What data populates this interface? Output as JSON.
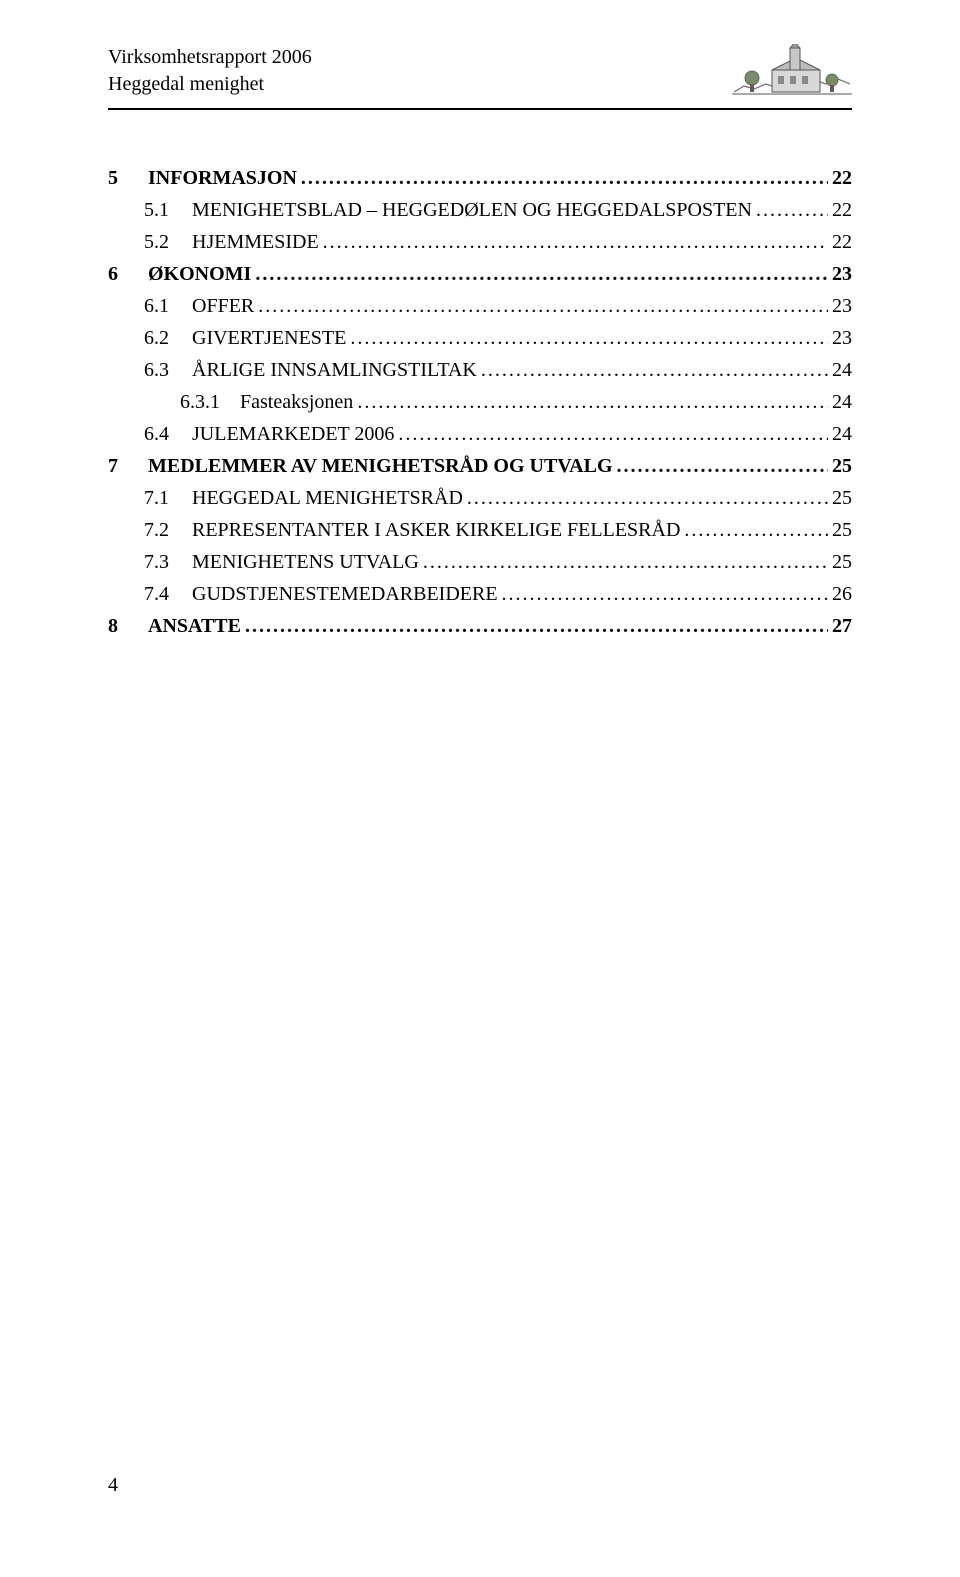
{
  "header": {
    "line1": "Virksomhetsrapport 2006",
    "line2": "Heggedal menighet"
  },
  "toc": [
    {
      "level": 0,
      "num": "5",
      "title": "INFORMASJON",
      "page": "22"
    },
    {
      "level": 1,
      "num": "5.1",
      "title": "MENIGHETSBLAD – HEGGEDØLEN OG HEGGEDALSPOSTEN",
      "page": "22"
    },
    {
      "level": 1,
      "num": "5.2",
      "title": "HJEMMESIDE",
      "page": "22"
    },
    {
      "level": 0,
      "num": "6",
      "title": "ØKONOMI",
      "page": "23"
    },
    {
      "level": 1,
      "num": "6.1",
      "title": "OFFER",
      "page": "23"
    },
    {
      "level": 1,
      "num": "6.2",
      "title": "GIVERTJENESTE",
      "page": "23"
    },
    {
      "level": 1,
      "num": "6.3",
      "title": "ÅRLIGE INNSAMLINGSTILTAK",
      "page": "24"
    },
    {
      "level": 2,
      "num": "6.3.1",
      "title": "Fasteaksjonen",
      "page": "24"
    },
    {
      "level": 1,
      "num": "6.4",
      "title": "JULEMARKEDET 2006",
      "page": "24"
    },
    {
      "level": 0,
      "num": "7",
      "title": "MEDLEMMER AV MENIGHETSRÅD OG UTVALG",
      "page": "25"
    },
    {
      "level": 1,
      "num": "7.1",
      "title": "HEGGEDAL MENIGHETSRÅD",
      "page": "25"
    },
    {
      "level": 1,
      "num": "7.2",
      "title": "REPRESENTANTER I ASKER KIRKELIGE FELLESRÅD",
      "page": "25"
    },
    {
      "level": 1,
      "num": "7.3",
      "title": "MENIGHETENS UTVALG",
      "page": "25"
    },
    {
      "level": 1,
      "num": "7.4",
      "title": "GUDSTJENESTEMEDARBEIDERE",
      "page": "26"
    },
    {
      "level": 0,
      "num": "8",
      "title": "ANSATTE",
      "page": "27"
    }
  ],
  "leader": "....................................................................................................................................................................................................",
  "page_number": "4",
  "colors": {
    "text": "#000000",
    "background": "#ffffff",
    "line": "#000000"
  }
}
